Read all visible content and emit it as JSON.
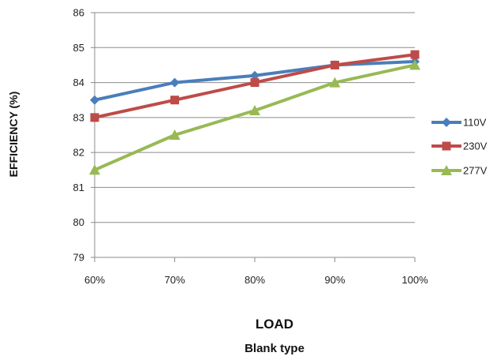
{
  "chart_data": {
    "type": "line",
    "title": "",
    "xlabel": "LOAD",
    "ylabel": "EFFICIENCY (%)",
    "subtitle": "Blank type",
    "categories": [
      "60%",
      "70%",
      "80%",
      "90%",
      "100%"
    ],
    "ylim": [
      79,
      86
    ],
    "yticks": [
      "79",
      "80",
      "81",
      "82",
      "83",
      "84",
      "85",
      "86"
    ],
    "grid": true,
    "legend_position": "right",
    "series": [
      {
        "name": "110V",
        "values": [
          83.5,
          84.0,
          84.2,
          84.5,
          84.6
        ],
        "color": "#4a7ebb",
        "marker": "diamond"
      },
      {
        "name": "230V",
        "values": [
          83.0,
          83.5,
          84.0,
          84.5,
          84.8
        ],
        "color": "#be4b48",
        "marker": "square"
      },
      {
        "name": "277V",
        "values": [
          81.5,
          82.5,
          83.2,
          84.0,
          84.5
        ],
        "color": "#98b954",
        "marker": "triangle"
      }
    ]
  }
}
